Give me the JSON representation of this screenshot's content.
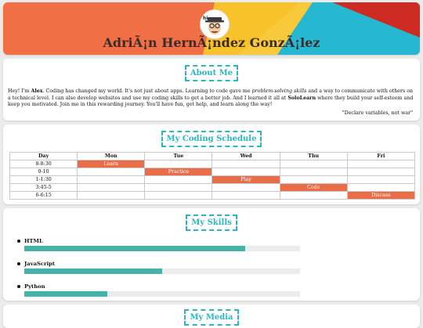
{
  "header": {
    "name": "AdriÃ¡n HernÃ¡ndez GonzÃ¡lez",
    "colors": {
      "orange": "#f16f45",
      "yellow": "#f8c32a",
      "blue": "#26b7d1",
      "red": "#cd2b22"
    },
    "avatar_icon": "cartoon-avatar-hat-glasses"
  },
  "about": {
    "title": "About Me",
    "bio": {
      "p1": "Hey! I'm ",
      "name": "Alex",
      "p2": ". Coding has changed my world. It's not just about apps. Learning to code gave me ",
      "em": "problem-solving skills",
      "p3": " and a way to communicate with others on a technical level. I can also develop websites and use my coding skills to get a better job. And I learned it all at ",
      "brand": "SoloLearn",
      "p4": " where they build your self-esteem and keep you motivated. Join me in this rewarding journey. You'll have fun, get help, and learn along the way!"
    },
    "quote": "\"Declare variables, not war\""
  },
  "schedule": {
    "title": "My Coding Schedule",
    "headers": [
      "Day",
      "Mon",
      "Tue",
      "Wed",
      "Thu",
      "Fri"
    ],
    "rows": [
      {
        "time": "8-8:30",
        "cells": [
          "Learn",
          "",
          "",
          "",
          ""
        ]
      },
      {
        "time": "9-10",
        "cells": [
          "",
          "Practice",
          "",
          "",
          ""
        ]
      },
      {
        "time": "1-1:30",
        "cells": [
          "",
          "",
          "Play",
          "",
          ""
        ]
      },
      {
        "time": "3:45-5",
        "cells": [
          "",
          "",
          "",
          "Code",
          ""
        ]
      },
      {
        "time": "6-6:15",
        "cells": [
          "",
          "",
          "",
          "",
          "Discuss"
        ]
      }
    ],
    "accent": "#e96d48"
  },
  "skills": {
    "title": "My Skills",
    "items": [
      {
        "name": "HTML",
        "level": 0.8
      },
      {
        "name": "JavaScript",
        "level": 0.5
      },
      {
        "name": "Python",
        "level": 0.3
      }
    ],
    "bar_color": "#46b3a9"
  },
  "next_section": {
    "title": "My Media"
  }
}
